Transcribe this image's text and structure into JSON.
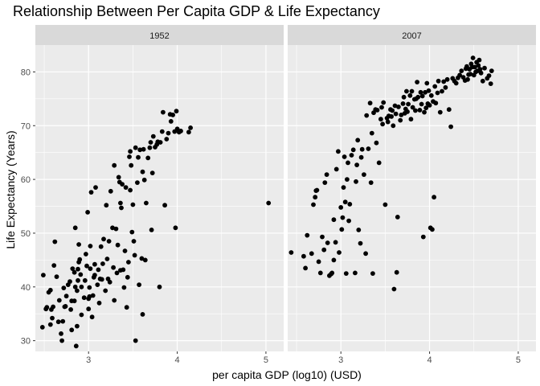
{
  "chart_data": {
    "type": "scatter",
    "title": "Relationship Between Per Capita GDP & Life Expectancy",
    "xlabel": "per capita GDP (log10) (USD)",
    "ylabel": "Life Expectancy (Years)",
    "xlim": [
      2.4,
      5.2
    ],
    "ylim": [
      28,
      85
    ],
    "x_ticks": [
      "3",
      "4",
      "5"
    ],
    "y_ticks": [
      "30",
      "40",
      "50",
      "60",
      "70",
      "80"
    ],
    "x_tick_values": [
      3,
      4,
      5
    ],
    "y_tick_values": [
      30,
      40,
      50,
      60,
      70,
      80
    ],
    "grid": true,
    "colors": {
      "panel_bg": "#ebebeb",
      "grid": "#ffffff",
      "strip_bg": "#d9d9d9",
      "point": "#000000"
    },
    "facets": [
      {
        "label": "1952",
        "points": [
          [
            2.48,
            32.5
          ],
          [
            2.49,
            42.2
          ],
          [
            2.52,
            35.9
          ],
          [
            2.53,
            36.2
          ],
          [
            2.55,
            39.0
          ],
          [
            2.57,
            39.4
          ],
          [
            2.57,
            33.0
          ],
          [
            2.58,
            35.8
          ],
          [
            2.59,
            34.2
          ],
          [
            2.6,
            36.3
          ],
          [
            2.61,
            44.0
          ],
          [
            2.62,
            48.4
          ],
          [
            2.64,
            41.9
          ],
          [
            2.66,
            33.5
          ],
          [
            2.67,
            37.5
          ],
          [
            2.69,
            31.3
          ],
          [
            2.7,
            30.0
          ],
          [
            2.71,
            33.6
          ],
          [
            2.72,
            39.8
          ],
          [
            2.73,
            36.3
          ],
          [
            2.74,
            36.4
          ],
          [
            2.75,
            38.3
          ],
          [
            2.77,
            40.4
          ],
          [
            2.79,
            41.0
          ],
          [
            2.8,
            35.8
          ],
          [
            2.81,
            32.0
          ],
          [
            2.81,
            37.4
          ],
          [
            2.82,
            43.4
          ],
          [
            2.84,
            42.7
          ],
          [
            2.84,
            37.4
          ],
          [
            2.85,
            40.0
          ],
          [
            2.85,
            51.0
          ],
          [
            2.86,
            29.0
          ],
          [
            2.87,
            32.7
          ],
          [
            2.87,
            39.3
          ],
          [
            2.88,
            41.2
          ],
          [
            2.88,
            43.3
          ],
          [
            2.89,
            44.6
          ],
          [
            2.89,
            47.9
          ],
          [
            2.9,
            45.1
          ],
          [
            2.91,
            42.3
          ],
          [
            2.92,
            40.0
          ],
          [
            2.92,
            34.8
          ],
          [
            2.95,
            38.0
          ],
          [
            2.96,
            41.2
          ],
          [
            2.97,
            46.1
          ],
          [
            2.98,
            43.9
          ],
          [
            2.99,
            53.9
          ],
          [
            3.0,
            37.8
          ],
          [
            3.0,
            35.9
          ],
          [
            3.01,
            38.2
          ],
          [
            3.01,
            39.9
          ],
          [
            3.02,
            43.4
          ],
          [
            3.02,
            47.6
          ],
          [
            3.03,
            57.6
          ],
          [
            3.04,
            34.4
          ],
          [
            3.05,
            38.4
          ],
          [
            3.06,
            41.8
          ],
          [
            3.07,
            42.2
          ],
          [
            3.07,
            44.2
          ],
          [
            3.08,
            58.5
          ],
          [
            3.1,
            40.4
          ],
          [
            3.11,
            43.2
          ],
          [
            3.12,
            37.0
          ],
          [
            3.13,
            41.5
          ],
          [
            3.14,
            47.5
          ],
          [
            3.15,
            41.4
          ],
          [
            3.16,
            44.3
          ],
          [
            3.17,
            48.9
          ],
          [
            3.19,
            39.3
          ],
          [
            3.2,
            55.2
          ],
          [
            3.21,
            45.2
          ],
          [
            3.22,
            41.5
          ],
          [
            3.23,
            48.5
          ],
          [
            3.24,
            40.9
          ],
          [
            3.25,
            57.8
          ],
          [
            3.27,
            51.0
          ],
          [
            3.28,
            43.6
          ],
          [
            3.29,
            37.5
          ],
          [
            3.29,
            62.6
          ],
          [
            3.31,
            50.8
          ],
          [
            3.32,
            42.6
          ],
          [
            3.33,
            47.8
          ],
          [
            3.34,
            60.4
          ],
          [
            3.35,
            59.5
          ],
          [
            3.36,
            43.1
          ],
          [
            3.36,
            55.6
          ],
          [
            3.37,
            54.7
          ],
          [
            3.38,
            59.1
          ],
          [
            3.39,
            43.2
          ],
          [
            3.4,
            39.9
          ],
          [
            3.41,
            46.7
          ],
          [
            3.42,
            58.5
          ],
          [
            3.43,
            36.2
          ],
          [
            3.44,
            41.8
          ],
          [
            3.45,
            44.6
          ],
          [
            3.46,
            64.2
          ],
          [
            3.47,
            58.0
          ],
          [
            3.47,
            65.2
          ],
          [
            3.48,
            62.6
          ],
          [
            3.49,
            50.2
          ],
          [
            3.5,
            55.3
          ],
          [
            3.51,
            48.5
          ],
          [
            3.52,
            45.9
          ],
          [
            3.53,
            30.0
          ],
          [
            3.53,
            65.9
          ],
          [
            3.55,
            59.4
          ],
          [
            3.56,
            64.1
          ],
          [
            3.57,
            40.4
          ],
          [
            3.58,
            65.5
          ],
          [
            3.6,
            45.3
          ],
          [
            3.61,
            61.4
          ],
          [
            3.61,
            34.9
          ],
          [
            3.62,
            65.6
          ],
          [
            3.63,
            59.9
          ],
          [
            3.64,
            45.0
          ],
          [
            3.65,
            55.6
          ],
          [
            3.67,
            64.0
          ],
          [
            3.69,
            65.9
          ],
          [
            3.7,
            66.9
          ],
          [
            3.71,
            50.6
          ],
          [
            3.72,
            61.2
          ],
          [
            3.73,
            68.0
          ],
          [
            3.75,
            66.0
          ],
          [
            3.77,
            66.5
          ],
          [
            3.78,
            67.0
          ],
          [
            3.8,
            40.0
          ],
          [
            3.81,
            66.9
          ],
          [
            3.83,
            68.9
          ],
          [
            3.84,
            72.5
          ],
          [
            3.86,
            55.2
          ],
          [
            3.88,
            67.5
          ],
          [
            3.9,
            68.6
          ],
          [
            3.92,
            72.1
          ],
          [
            3.93,
            70.8
          ],
          [
            3.95,
            72.0
          ],
          [
            3.97,
            68.9
          ],
          [
            3.98,
            51.0
          ],
          [
            3.99,
            72.7
          ],
          [
            4.0,
            69.4
          ],
          [
            4.02,
            68.8
          ],
          [
            4.04,
            69.0
          ],
          [
            4.13,
            68.8
          ],
          [
            4.15,
            69.6
          ],
          [
            5.03,
            55.6
          ]
        ]
      },
      {
        "label": "2007",
        "points": [
          [
            2.44,
            46.4
          ],
          [
            2.58,
            45.7
          ],
          [
            2.6,
            43.5
          ],
          [
            2.62,
            49.6
          ],
          [
            2.67,
            46.2
          ],
          [
            2.69,
            55.3
          ],
          [
            2.71,
            56.7
          ],
          [
            2.72,
            57.9
          ],
          [
            2.73,
            58.0
          ],
          [
            2.75,
            44.7
          ],
          [
            2.77,
            42.6
          ],
          [
            2.79,
            49.3
          ],
          [
            2.81,
            46.9
          ],
          [
            2.82,
            59.4
          ],
          [
            2.84,
            60.9
          ],
          [
            2.85,
            48.2
          ],
          [
            2.87,
            42.1
          ],
          [
            2.89,
            42.4
          ],
          [
            2.9,
            42.6
          ],
          [
            2.92,
            45.0
          ],
          [
            2.92,
            52.5
          ],
          [
            2.94,
            48.3
          ],
          [
            2.95,
            61.9
          ],
          [
            2.97,
            65.2
          ],
          [
            2.98,
            46.4
          ],
          [
            3.0,
            54.8
          ],
          [
            3.01,
            50.7
          ],
          [
            3.02,
            52.9
          ],
          [
            3.03,
            58.5
          ],
          [
            3.04,
            64.2
          ],
          [
            3.05,
            55.8
          ],
          [
            3.06,
            42.5
          ],
          [
            3.07,
            60.0
          ],
          [
            3.08,
            63.1
          ],
          [
            3.09,
            52.3
          ],
          [
            3.1,
            55.4
          ],
          [
            3.12,
            64.5
          ],
          [
            3.14,
            65.5
          ],
          [
            3.16,
            42.6
          ],
          [
            3.17,
            59.6
          ],
          [
            3.18,
            62.7
          ],
          [
            3.19,
            67.3
          ],
          [
            3.2,
            50.6
          ],
          [
            3.22,
            48.1
          ],
          [
            3.23,
            64.1
          ],
          [
            3.24,
            65.6
          ],
          [
            3.26,
            60.9
          ],
          [
            3.28,
            46.2
          ],
          [
            3.29,
            71.9
          ],
          [
            3.31,
            65.7
          ],
          [
            3.33,
            74.2
          ],
          [
            3.34,
            59.4
          ],
          [
            3.35,
            68.6
          ],
          [
            3.36,
            42.5
          ],
          [
            3.37,
            72.4
          ],
          [
            3.39,
            73.0
          ],
          [
            3.4,
            66.8
          ],
          [
            3.41,
            72.9
          ],
          [
            3.43,
            63.1
          ],
          [
            3.45,
            71.2
          ],
          [
            3.46,
            73.4
          ],
          [
            3.47,
            70.3
          ],
          [
            3.48,
            74.3
          ],
          [
            3.5,
            55.3
          ],
          [
            3.52,
            71.4
          ],
          [
            3.53,
            70.7
          ],
          [
            3.54,
            71.8
          ],
          [
            3.56,
            73.0
          ],
          [
            3.57,
            71.7
          ],
          [
            3.58,
            72.8
          ],
          [
            3.59,
            70.0
          ],
          [
            3.6,
            39.6
          ],
          [
            3.61,
            73.7
          ],
          [
            3.62,
            72.2
          ],
          [
            3.63,
            42.7
          ],
          [
            3.64,
            53.0
          ],
          [
            3.65,
            73.5
          ],
          [
            3.67,
            71.0
          ],
          [
            3.68,
            72.0
          ],
          [
            3.7,
            74.1
          ],
          [
            3.71,
            75.3
          ],
          [
            3.72,
            72.3
          ],
          [
            3.73,
            73.1
          ],
          [
            3.74,
            76.4
          ],
          [
            3.75,
            72.6
          ],
          [
            3.76,
            74.0
          ],
          [
            3.78,
            75.6
          ],
          [
            3.79,
            71.2
          ],
          [
            3.8,
            76.4
          ],
          [
            3.81,
            73.4
          ],
          [
            3.83,
            74.9
          ],
          [
            3.84,
            72.8
          ],
          [
            3.85,
            75.0
          ],
          [
            3.86,
            78.1
          ],
          [
            3.87,
            75.3
          ],
          [
            3.89,
            72.9
          ],
          [
            3.9,
            76.2
          ],
          [
            3.91,
            74.0
          ],
          [
            3.92,
            75.5
          ],
          [
            3.93,
            49.3
          ],
          [
            3.94,
            72.5
          ],
          [
            3.95,
            76.2
          ],
          [
            3.96,
            73.3
          ],
          [
            3.97,
            77.9
          ],
          [
            3.98,
            74.1
          ],
          [
            3.99,
            76.5
          ],
          [
            4.0,
            73.8
          ],
          [
            4.01,
            51.0
          ],
          [
            4.02,
            75.6
          ],
          [
            4.03,
            50.7
          ],
          [
            4.04,
            74.5
          ],
          [
            4.05,
            56.7
          ],
          [
            4.06,
            77.3
          ],
          [
            4.07,
            74.2
          ],
          [
            4.09,
            76.1
          ],
          [
            4.1,
            78.3
          ],
          [
            4.12,
            72.5
          ],
          [
            4.14,
            76.4
          ],
          [
            4.16,
            78.2
          ],
          [
            4.18,
            77.1
          ],
          [
            4.2,
            78.6
          ],
          [
            4.22,
            73.0
          ],
          [
            4.24,
            69.8
          ],
          [
            4.26,
            78.8
          ],
          [
            4.28,
            78.3
          ],
          [
            4.3,
            77.9
          ],
          [
            4.32,
            78.9
          ],
          [
            4.34,
            79.4
          ],
          [
            4.36,
            80.2
          ],
          [
            4.38,
            79.0
          ],
          [
            4.4,
            78.4
          ],
          [
            4.41,
            80.6
          ],
          [
            4.42,
            81.0
          ],
          [
            4.43,
            78.6
          ],
          [
            4.44,
            79.5
          ],
          [
            4.45,
            80.5
          ],
          [
            4.46,
            79.6
          ],
          [
            4.47,
            81.5
          ],
          [
            4.48,
            80.9
          ],
          [
            4.49,
            82.6
          ],
          [
            4.5,
            79.4
          ],
          [
            4.51,
            80.9
          ],
          [
            4.52,
            80.0
          ],
          [
            4.53,
            81.8
          ],
          [
            4.54,
            80.2
          ],
          [
            4.55,
            81.2
          ],
          [
            4.56,
            82.2
          ],
          [
            4.57,
            80.5
          ],
          [
            4.58,
            79.8
          ],
          [
            4.6,
            78.3
          ],
          [
            4.62,
            80.7
          ],
          [
            4.65,
            78.8
          ],
          [
            4.67,
            79.3
          ],
          [
            4.69,
            77.8
          ],
          [
            4.7,
            80.2
          ]
        ]
      }
    ]
  }
}
